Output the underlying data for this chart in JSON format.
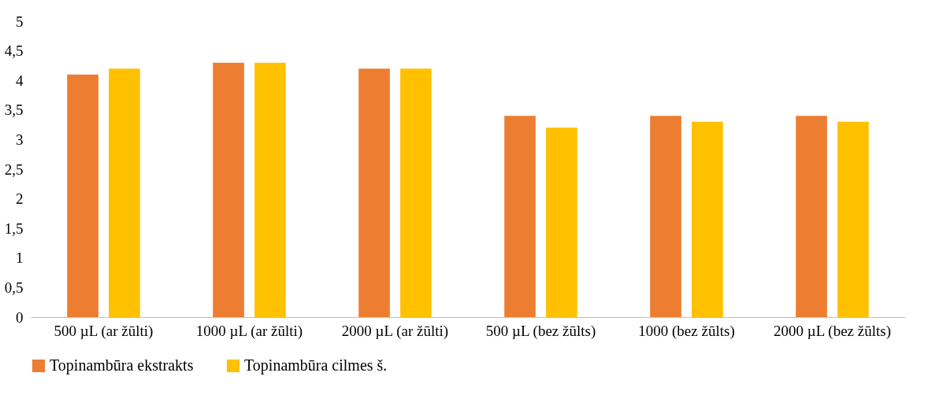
{
  "chart_data": {
    "type": "bar",
    "categories": [
      "500 µL (ar žūlti)",
      "1000 µL (ar žūlti)",
      "2000 µL (ar žūlti)",
      "500 µL (bez žūlts)",
      "1000 (bez žūlts)",
      "2000 µL (bez žūlts)"
    ],
    "series": [
      {
        "name": "Topinambūra ekstrakts",
        "color": "#ed7d31",
        "values": [
          4.1,
          4.3,
          4.2,
          3.4,
          3.4,
          3.4
        ]
      },
      {
        "name": "Topinambūra cilmes š.",
        "color": "#ffc000",
        "values": [
          4.2,
          4.3,
          4.2,
          3.2,
          3.3,
          3.3
        ]
      }
    ],
    "ylim": [
      0,
      5
    ],
    "yticks": [
      0,
      {
        "value": 0.5,
        "label": "0,5"
      },
      1,
      {
        "value": 1.5,
        "label": "1,5"
      },
      2,
      {
        "value": 2.5,
        "label": "2,5"
      },
      3,
      {
        "value": 3.5,
        "label": "3,5"
      },
      4,
      {
        "value": 4.5,
        "label": "4,5"
      },
      5
    ],
    "grid": false,
    "legend": "bottom"
  }
}
